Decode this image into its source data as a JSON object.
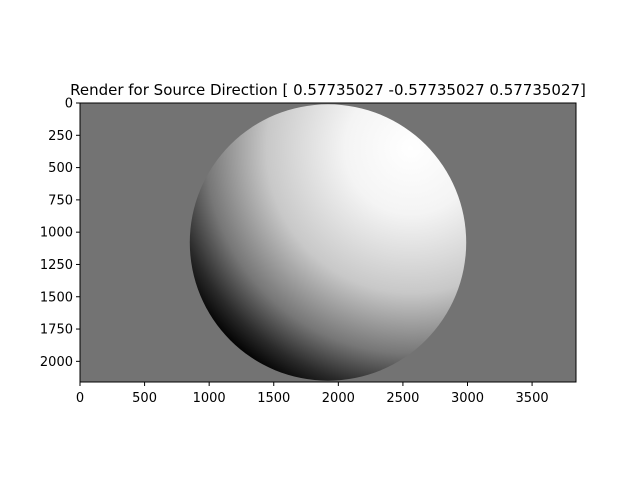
{
  "chart_data": {
    "type": "heatmap",
    "title": "Render for Source Direction [ 0.57735027 -0.57735027  0.57735027]",
    "image": {
      "width": 3840,
      "height": 2160,
      "background_color": "#737373",
      "sphere": {
        "center_x": 1920,
        "center_y": 1080,
        "radius": 1070
      },
      "light_direction": [
        0.57735027,
        -0.57735027,
        0.57735027
      ]
    },
    "xlim": [
      0,
      3840
    ],
    "ylim": [
      2160,
      0
    ],
    "x_ticks": [
      0,
      500,
      1000,
      1500,
      2000,
      2500,
      3000,
      3500
    ],
    "y_ticks": [
      0,
      250,
      500,
      750,
      1000,
      1250,
      1500,
      1750,
      2000
    ],
    "grid": false
  }
}
